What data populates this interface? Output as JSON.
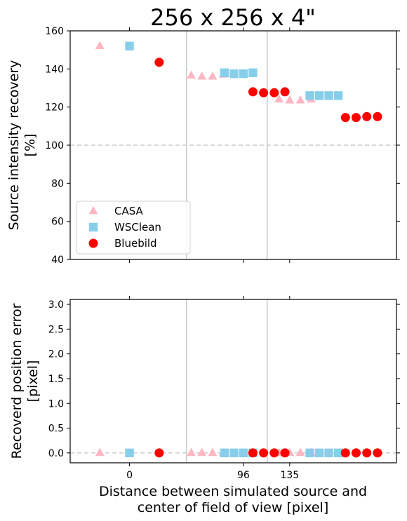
{
  "chart_data": {
    "type": "scatter",
    "title": "256 x 256 x 4\"",
    "xlabel": [
      "Distance between simulated source and",
      "center of field of view [pixel]"
    ],
    "x_tick_labels": [
      "0",
      "96",
      "135"
    ],
    "x_ticks": [
      0,
      96,
      135
    ],
    "category_separators": [
      48,
      116
    ],
    "colors": {
      "CASA": "#ffb6c1",
      "WSClean": "#87ceeb",
      "Bluebild": "#ff0000"
    },
    "panels": [
      {
        "ylabel": [
          "Source intensity recovery",
          "[%]"
        ],
        "ylim": [
          40,
          160
        ],
        "yticks": [
          "40",
          "60",
          "80",
          "100",
          "120",
          "140",
          "160"
        ],
        "reference_line": 100,
        "legend": {
          "position": "lower-left",
          "entries": [
            "CASA",
            "WSClean",
            "Bluebild"
          ]
        },
        "series": [
          {
            "name": "CASA",
            "marker": "triangle",
            "x": [
              -25,
              52,
              61,
              70,
              79,
              126,
              135,
              144,
              153
            ],
            "y": [
              152,
              136.5,
              136,
              136,
              137,
              124,
              123.5,
              123.5,
              124
            ]
          },
          {
            "name": "WSClean",
            "marker": "square",
            "x": [
              0,
              80,
              88,
              96,
              104,
              152,
              160,
              168,
              176
            ],
            "y": [
              152,
              138,
              137.5,
              137.5,
              138,
              126,
              126,
              126,
              126
            ]
          },
          {
            "name": "Bluebild",
            "marker": "circle",
            "x": [
              25,
              104,
              113,
              122,
              131,
              182,
              191,
              200,
              209
            ],
            "y": [
              143.5,
              128,
              127.5,
              127.5,
              128,
              114.5,
              114.5,
              115,
              115
            ]
          }
        ]
      },
      {
        "ylabel": [
          "Recoverd position error",
          "[pixel]"
        ],
        "ylim": [
          -0.2,
          3.1
        ],
        "yticks": [
          "0.0",
          "0.5",
          "1.0",
          "1.5",
          "2.0",
          "2.5",
          "3.0"
        ],
        "reference_line": 0,
        "series": [
          {
            "name": "CASA",
            "marker": "triangle",
            "x": [
              -25,
              52,
              61,
              70,
              79,
              126,
              135,
              144,
              153
            ],
            "y": [
              0,
              0,
              0,
              0,
              0,
              0,
              0,
              0,
              0
            ]
          },
          {
            "name": "WSClean",
            "marker": "square",
            "x": [
              0,
              80,
              88,
              96,
              104,
              152,
              160,
              168,
              176
            ],
            "y": [
              0,
              0,
              0,
              0,
              0,
              0,
              0,
              0,
              0
            ]
          },
          {
            "name": "Bluebild",
            "marker": "circle",
            "x": [
              25,
              104,
              113,
              122,
              131,
              182,
              191,
              200,
              209
            ],
            "y": [
              0,
              0,
              0,
              0,
              0,
              0,
              0,
              0,
              0
            ]
          }
        ]
      }
    ]
  }
}
